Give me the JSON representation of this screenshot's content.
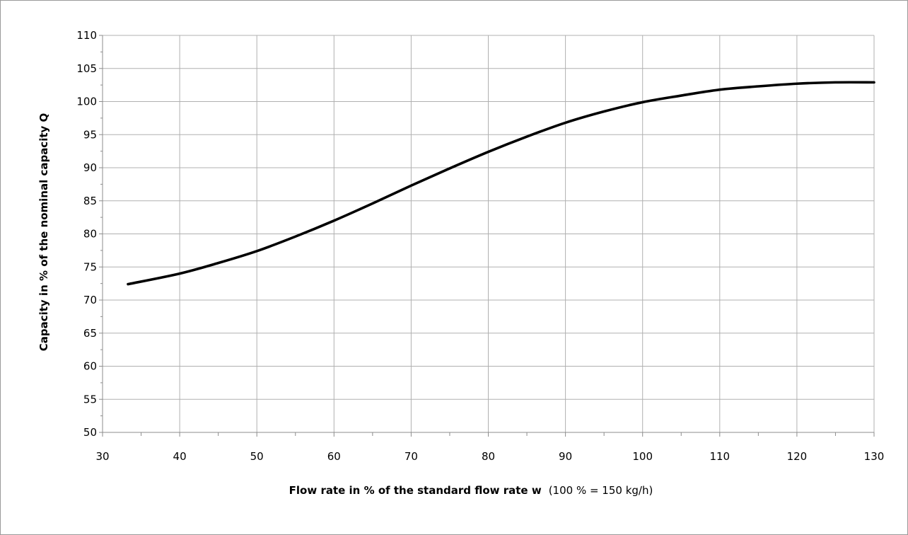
{
  "chart_data": {
    "type": "line",
    "xlabel_bold": "Flow rate in %  of the standard flow rate w",
    "xlabel_note": "(100 % = 150 kg/h)",
    "ylabel": "Capacity  in % of the nominal capacity Q",
    "xlim": [
      30,
      130
    ],
    "ylim": [
      50,
      110
    ],
    "xticks": [
      30,
      40,
      50,
      60,
      70,
      80,
      90,
      100,
      110,
      120,
      130
    ],
    "yticks": [
      50,
      55,
      60,
      65,
      70,
      75,
      80,
      85,
      90,
      95,
      100,
      105,
      110
    ],
    "grid": true,
    "legend": "none",
    "line_color": "#000000",
    "grid_color": "#b0b0b0",
    "series": [
      {
        "x": [
          33.3,
          40,
          45,
          50,
          55,
          60,
          65,
          70,
          75,
          80,
          85,
          90,
          95,
          100,
          105,
          110,
          115,
          120,
          125,
          130
        ],
        "y": [
          72.4,
          74.0,
          75.6,
          77.4,
          79.6,
          82.0,
          84.6,
          87.3,
          89.9,
          92.4,
          94.7,
          96.8,
          98.5,
          99.9,
          100.9,
          101.8,
          102.3,
          102.7,
          102.9,
          102.9
        ]
      }
    ]
  }
}
